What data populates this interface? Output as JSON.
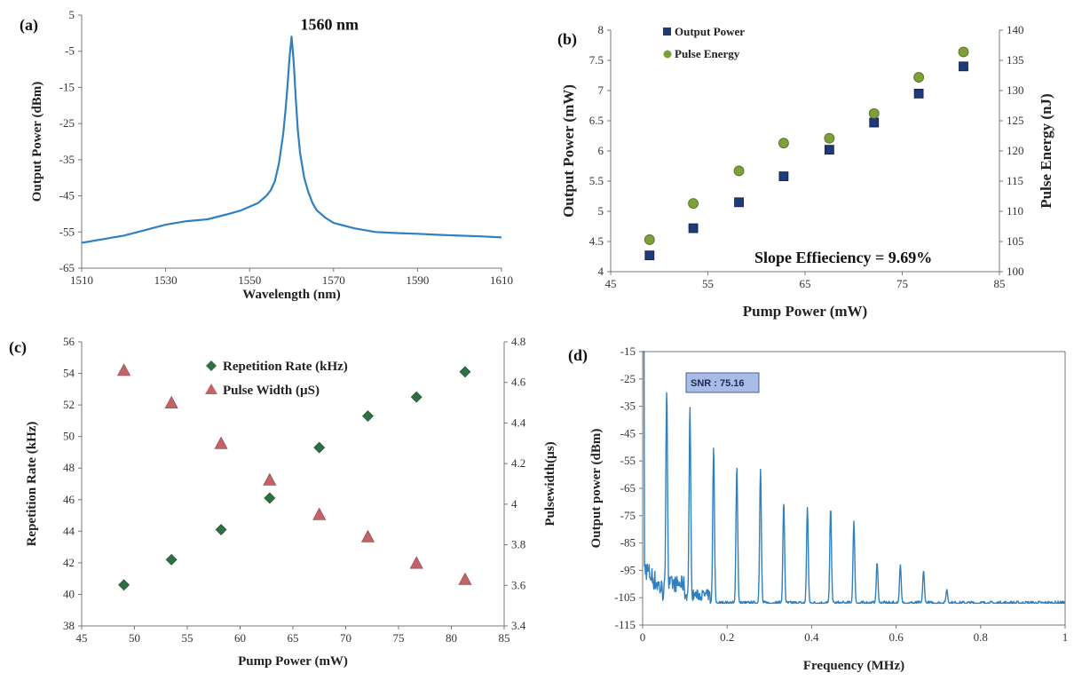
{
  "colors": {
    "line_blue": "#2f80c0",
    "square_navy": "#1f3a78",
    "circle_olive": "#7ea03a",
    "diamond_green": "#2e6f43",
    "triangle_red": "#c0646a",
    "snr_box": "#a9bce6"
  },
  "chart_data": [
    {
      "panel_label": "(a)",
      "type": "line",
      "xlabel": "Wavelength (nm)",
      "ylabel": "Output Power (dBm)",
      "xlim": [
        1510,
        1610
      ],
      "ylim": [
        -65,
        5
      ],
      "xticks": [
        1510,
        1530,
        1550,
        1570,
        1590,
        1610
      ],
      "yticks": [
        5,
        -5,
        -15,
        -25,
        -35,
        -45,
        -55,
        -65
      ],
      "annotation": "1560 nm",
      "series": [
        {
          "x": [
            1510,
            1515,
            1520,
            1525,
            1530,
            1535,
            1540,
            1545,
            1548,
            1550,
            1552,
            1554,
            1555,
            1556,
            1557,
            1558,
            1558.5,
            1559,
            1559.5,
            1560,
            1560.5,
            1561,
            1561.5,
            1562,
            1563,
            1564,
            1565,
            1566,
            1568,
            1570,
            1575,
            1580,
            1585,
            1590,
            1595,
            1600,
            1605,
            1610
          ],
          "y": [
            -58,
            -57,
            -56,
            -54.5,
            -53,
            -52,
            -51.5,
            -50,
            -49,
            -48,
            -47,
            -45,
            -43.5,
            -41,
            -36,
            -28,
            -22,
            -15,
            -7,
            -1,
            -8,
            -18,
            -27,
            -33,
            -40,
            -44,
            -47,
            -49,
            -51,
            -52.5,
            -54,
            -55,
            -55.3,
            -55.5,
            -55.8,
            -56,
            -56.2,
            -56.5
          ]
        }
      ]
    },
    {
      "panel_label": "(b)",
      "type": "scatter",
      "xlabel": "Pump Power (mW)",
      "ylabel": "Output Power (mW)",
      "y2label": "Pulse Energy (nJ)",
      "xlim": [
        45,
        85
      ],
      "ylim": [
        4,
        8
      ],
      "y2lim": [
        100,
        140
      ],
      "xticks": [
        45,
        55,
        65,
        75,
        85
      ],
      "yticks": [
        4,
        4.5,
        5,
        5.5,
        6,
        6.5,
        7,
        7.5,
        8
      ],
      "y2ticks": [
        100,
        105,
        110,
        115,
        120,
        125,
        130,
        135,
        140
      ],
      "annotation": "Slope Effieciency = 9.69%",
      "legend_position": "top-left",
      "series": [
        {
          "name": "Output Power",
          "axis": "left",
          "x": [
            49,
            53.5,
            58.2,
            62.8,
            67.5,
            72.1,
            76.7,
            81.3
          ],
          "y": [
            4.27,
            4.72,
            5.15,
            5.58,
            6.02,
            6.47,
            6.95,
            7.4
          ]
        },
        {
          "name": "Pulse Energy",
          "axis": "right",
          "x": [
            49,
            53.5,
            58.2,
            62.8,
            67.5,
            72.1,
            76.7,
            81.3
          ],
          "y": [
            105.3,
            111.3,
            116.7,
            121.3,
            122.1,
            126.2,
            132.2,
            136.4
          ]
        }
      ]
    },
    {
      "panel_label": "(c)",
      "type": "scatter",
      "xlabel": "Pump Power (mW)",
      "ylabel": "Repetition Rate (kHz)",
      "y2label": "Pulsewidth(µs)",
      "xlim": [
        45,
        85
      ],
      "ylim": [
        38,
        56
      ],
      "y2lim": [
        3.4,
        4.8
      ],
      "xticks": [
        45,
        50,
        55,
        60,
        65,
        70,
        75,
        80,
        85
      ],
      "yticks": [
        38,
        40,
        42,
        44,
        46,
        48,
        50,
        52,
        54,
        56
      ],
      "y2ticks": [
        3.4,
        3.6,
        3.8,
        4,
        4.2,
        4.4,
        4.6,
        4.8
      ],
      "legend_position": "top-center",
      "series": [
        {
          "name": "Repetition Rate (kHz)",
          "axis": "left",
          "x": [
            49,
            53.5,
            58.2,
            62.8,
            67.5,
            72.1,
            76.7,
            81.3
          ],
          "y": [
            40.6,
            42.2,
            44.1,
            46.1,
            49.3,
            51.3,
            52.5,
            54.1
          ]
        },
        {
          "name": "Pulse Width (µS)",
          "axis": "right",
          "x": [
            49,
            53.5,
            58.2,
            62.8,
            67.5,
            72.1,
            76.7,
            81.3
          ],
          "y": [
            4.66,
            4.5,
            4.3,
            4.12,
            3.95,
            3.84,
            3.71,
            3.63
          ]
        }
      ]
    },
    {
      "panel_label": "(d)",
      "type": "line",
      "xlabel": "Frequency (MHz)",
      "ylabel": "Output power (dBm)",
      "xlim": [
        0,
        1
      ],
      "ylim": [
        -115,
        -15
      ],
      "xticks": [
        0,
        0.2,
        0.4,
        0.6,
        0.8,
        1
      ],
      "yticks": [
        -15,
        -25,
        -35,
        -45,
        -55,
        -65,
        -75,
        -85,
        -95,
        -105,
        -115
      ],
      "annotation": "SNR : 75.16",
      "noise_floor": -107,
      "peaks": {
        "x": [
          0.057,
          0.112,
          0.168,
          0.223,
          0.279,
          0.334,
          0.39,
          0.445,
          0.5,
          0.555,
          0.61,
          0.665,
          0.72
        ],
        "y": [
          -29,
          -35,
          -50,
          -57,
          -58,
          -70,
          -72,
          -72,
          -77,
          -92,
          -93,
          -95,
          -102
        ]
      }
    }
  ]
}
